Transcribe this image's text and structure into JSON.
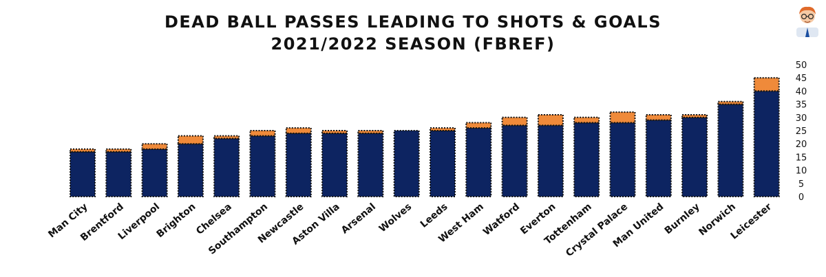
{
  "chart_data": {
    "type": "bar",
    "stacked": true,
    "title": "DEAD BALL PASSES LEADING TO SHOTS & GOALS",
    "subtitle": "2021/2022 SEASON (FBREF)",
    "categories": [
      "Man City",
      "Brentford",
      "Liverpool",
      "Brighton",
      "Chelsea",
      "Southampton",
      "Newcastle",
      "Aston Villa",
      "Arsenal",
      "Wolves",
      "Leeds",
      "West Ham",
      "Watford",
      "Everton",
      "Tottenham",
      "Crystal Palace",
      "Man United",
      "Burnley",
      "Norwich",
      "Leicester"
    ],
    "series": [
      {
        "values": [
          17,
          17,
          18,
          20,
          22,
          23,
          24,
          24,
          24,
          25,
          25,
          26,
          27,
          27,
          28,
          28,
          29,
          30,
          35,
          40
        ]
      },
      {
        "values": [
          1,
          1,
          2,
          3,
          1,
          2,
          2,
          1,
          1,
          0,
          1,
          2,
          3,
          4,
          2,
          4,
          2,
          1,
          1,
          5
        ]
      }
    ],
    "ylim": [
      0,
      50
    ],
    "yticks": [
      "0",
      "5",
      "10",
      "15",
      "20",
      "25",
      "30",
      "35",
      "40",
      "45",
      "50"
    ],
    "grid": false,
    "y_axis_side": "right",
    "colors": {
      "shots": "#0d2461",
      "goals": "#ef8a3a"
    }
  },
  "logo": {
    "icon": "cartoon-avatar-icon"
  }
}
